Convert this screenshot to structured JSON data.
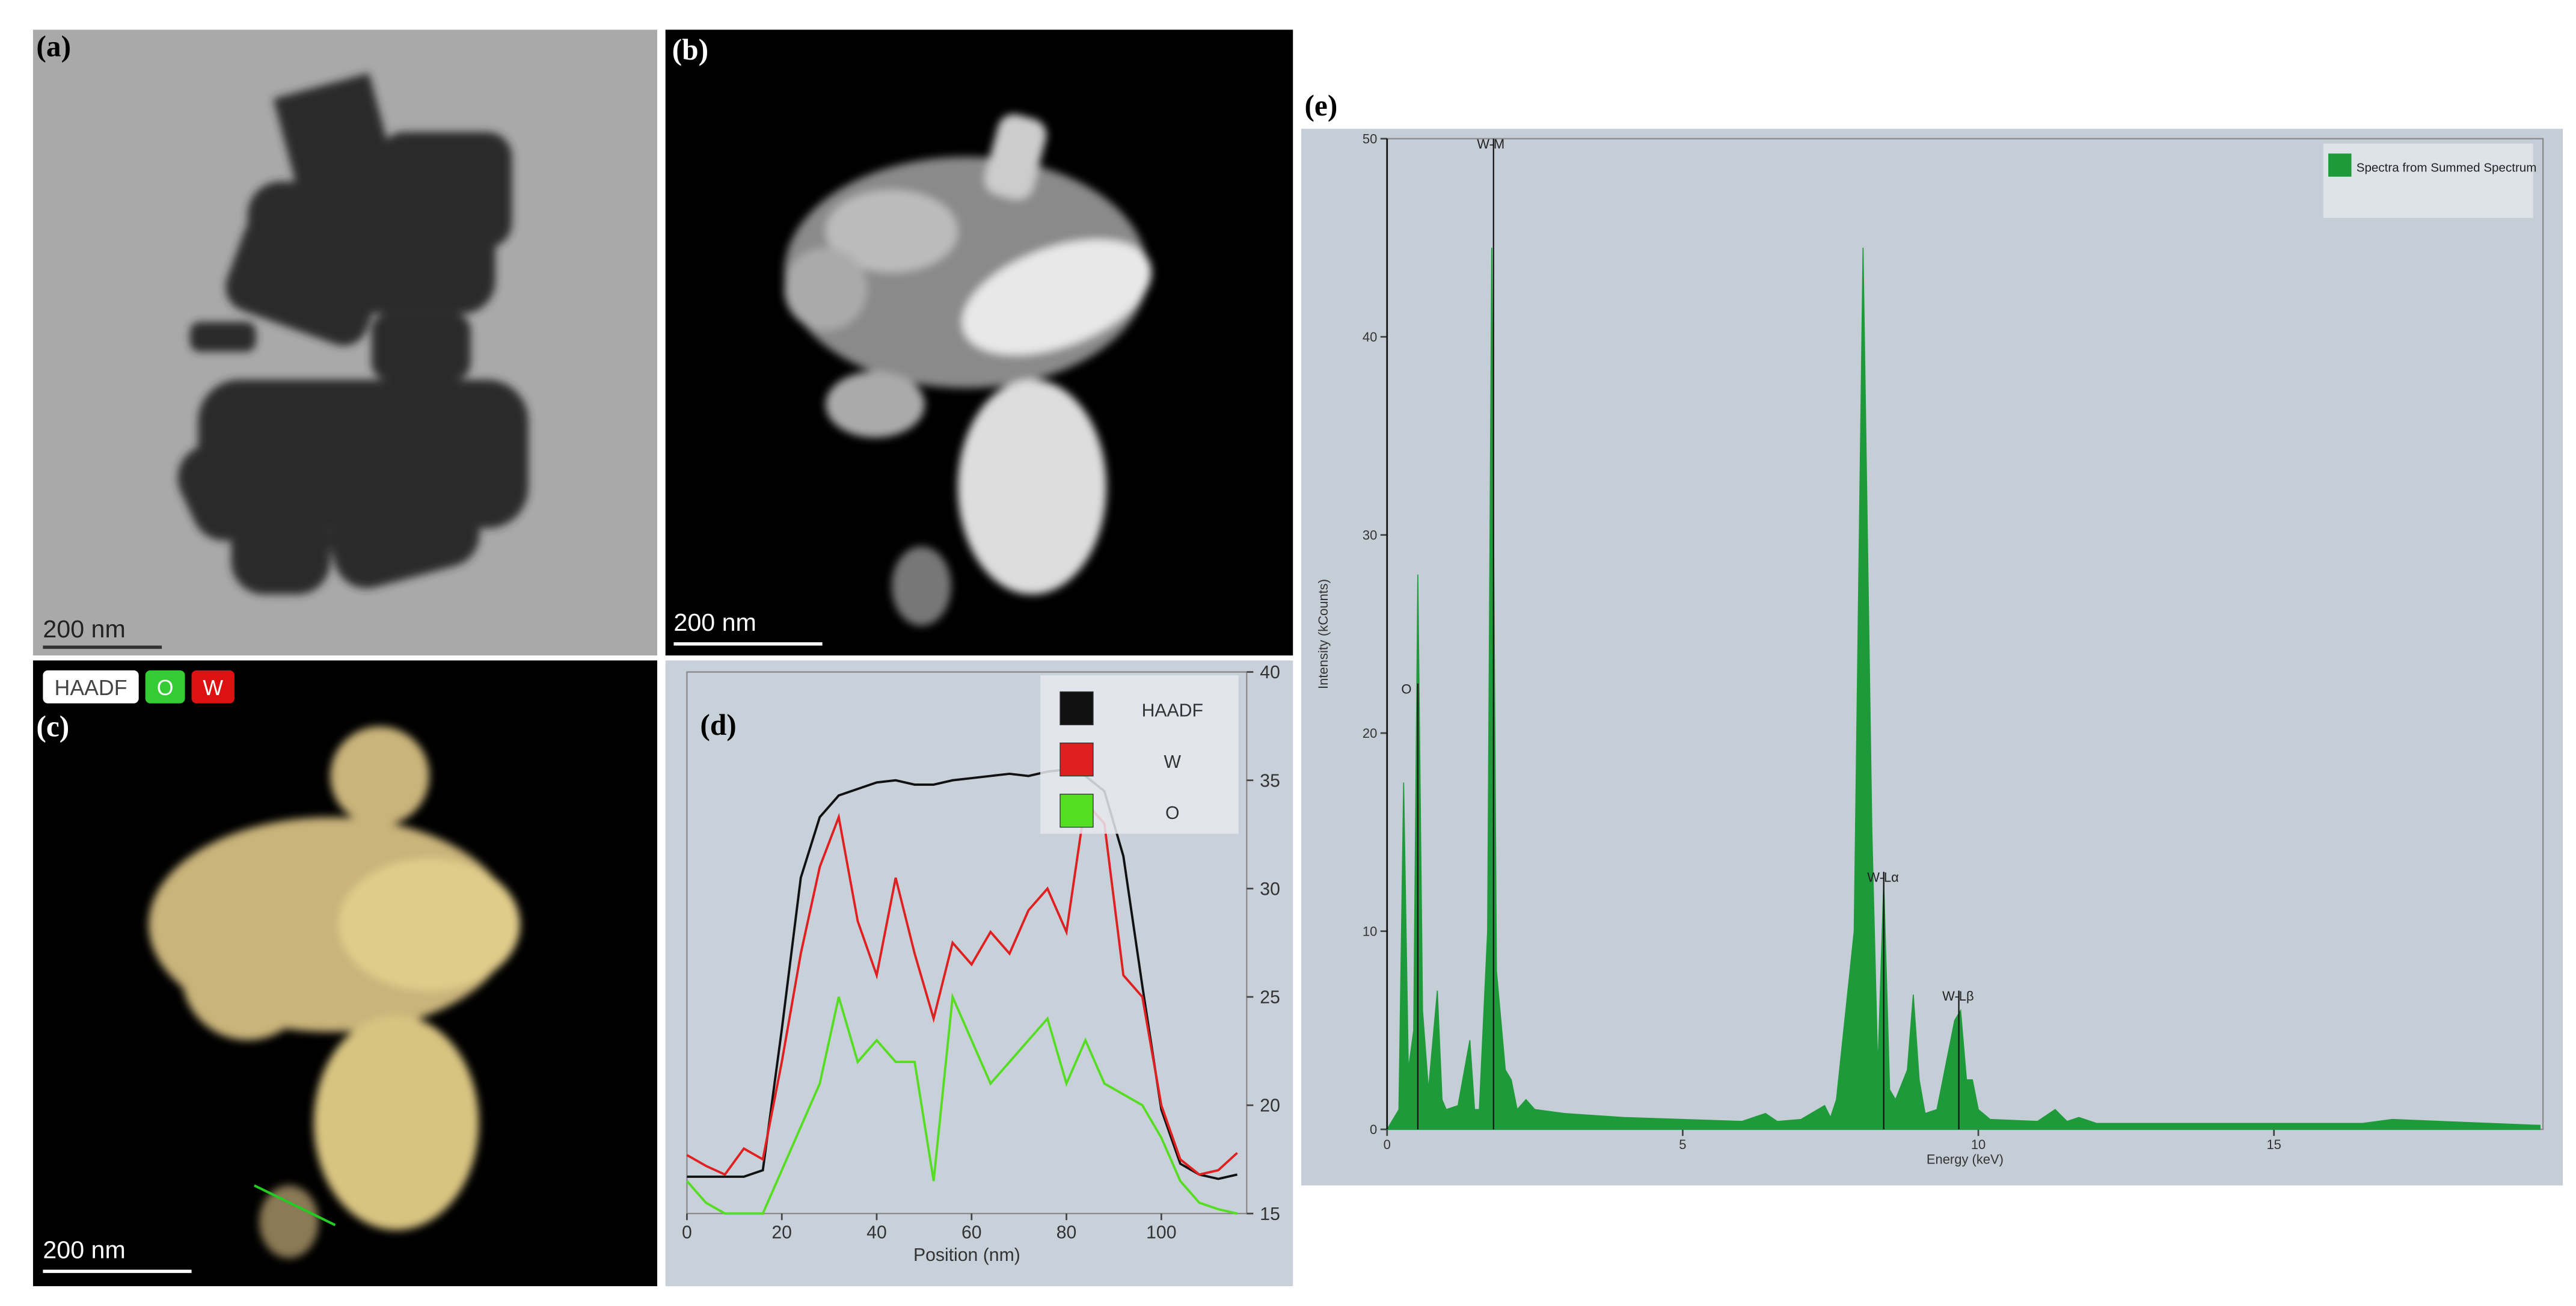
{
  "images": [
    {
      "label": "(a)",
      "scale_bar": "200 nm"
    },
    {
      "label": "(b)",
      "scale_bar": "200 nm"
    },
    {
      "label": "(c)",
      "scale_bar": "200 nm",
      "channels": [
        "HAADF",
        "O",
        "W"
      ]
    }
  ],
  "chart_data": [
    {
      "type": "line",
      "panel_label": "(d)",
      "x_label": "Position (nm)",
      "x": [
        0,
        4,
        8,
        12,
        16,
        20,
        24,
        28,
        32,
        36,
        40,
        44,
        48,
        52,
        56,
        60,
        64,
        68,
        72,
        76,
        80,
        84,
        88,
        92,
        96,
        100,
        104,
        108,
        112,
        116
      ],
      "series": [
        {
          "name": "HAADF",
          "color": "#111111",
          "values": [
            16.7,
            16.7,
            16.7,
            16.7,
            17.0,
            23.5,
            30.5,
            33.3,
            34.3,
            34.6,
            34.9,
            35.0,
            34.8,
            34.8,
            35.0,
            35.1,
            35.2,
            35.3,
            35.2,
            35.4,
            35.5,
            35.2,
            34.5,
            31.5,
            25.5,
            19.8,
            17.3,
            16.8,
            16.6,
            16.8
          ]
        },
        {
          "name": "W",
          "color": "#e02020",
          "values": [
            17.7,
            17.2,
            16.8,
            18.0,
            17.5,
            22,
            27,
            31,
            33.3,
            28.5,
            26,
            30.5,
            27,
            24,
            27.5,
            26.5,
            28,
            27,
            29,
            30,
            28,
            34,
            33,
            26,
            25,
            20,
            17.5,
            16.8,
            17,
            17.8
          ]
        },
        {
          "name": "O",
          "color": "#55dd22",
          "values": [
            16.5,
            15.5,
            15,
            15,
            15,
            17,
            19,
            21,
            25,
            22,
            23,
            22,
            22,
            16.5,
            25,
            23,
            21,
            22,
            23,
            24,
            21,
            23,
            21,
            20.5,
            20,
            18.5,
            16.5,
            15.5,
            15.2,
            15
          ]
        }
      ],
      "xlim": [
        0,
        118
      ],
      "xticks": [
        0,
        20,
        40,
        60,
        80,
        100
      ],
      "ylim": [
        15,
        40
      ],
      "yticks": [
        15,
        20,
        25,
        30,
        35,
        40
      ],
      "y_axis_side": "right",
      "legend": "upper right"
    },
    {
      "type": "area",
      "panel_label": "(e)",
      "x_label": "Energy (keV)",
      "y_label": "Intensity (kCounts)",
      "x": [
        0,
        0.2,
        0.28,
        0.36,
        0.45,
        0.52,
        0.6,
        0.7,
        0.85,
        0.93,
        1.0,
        1.2,
        1.4,
        1.48,
        1.56,
        1.7,
        1.77,
        1.85,
        2.0,
        2.1,
        2.2,
        2.35,
        2.5,
        3,
        4,
        5,
        6,
        6.4,
        6.6,
        7,
        7.4,
        7.5,
        7.6,
        7.9,
        8.05,
        8.2,
        8.3,
        8.4,
        8.5,
        8.6,
        8.8,
        8.9,
        9.0,
        9.1,
        9.3,
        9.6,
        9.7,
        9.8,
        9.9,
        10.0,
        10.2,
        11.0,
        11.3,
        11.5,
        11.7,
        12,
        13,
        15,
        16.5,
        17,
        19.5
      ],
      "series": [
        {
          "name": "Spectra from Summed Spectrum",
          "color": "#1f9a3a",
          "values": [
            0,
            1,
            17.5,
            3,
            5,
            28,
            6,
            2,
            7,
            1.5,
            1,
            1.2,
            4.5,
            1,
            1,
            10,
            44.5,
            8,
            3,
            2.5,
            1,
            1.5,
            1,
            0.8,
            0.6,
            0.5,
            0.4,
            0.8,
            0.4,
            0.5,
            1.2,
            0.6,
            1.5,
            10,
            44.5,
            15,
            3,
            12.5,
            2,
            1.5,
            3,
            6.8,
            2.5,
            0.8,
            1,
            5.5,
            6,
            2.5,
            2.5,
            1,
            0.5,
            0.4,
            1,
            0.4,
            0.6,
            0.3,
            0.3,
            0.3,
            0.3,
            0.5,
            0.2
          ]
        }
      ],
      "annotations": [
        {
          "text": "O",
          "x": 0.52,
          "y": 22.5
        },
        {
          "text": "W-M",
          "x": 1.8,
          "y": 50
        },
        {
          "text": "W-Lα",
          "x": 8.4,
          "y": 13
        },
        {
          "text": "W-Lβ",
          "x": 9.67,
          "y": 7
        }
      ],
      "xlim": [
        0,
        19.55
      ],
      "xticks": [
        0,
        5,
        10,
        15
      ],
      "ylim": [
        0,
        50
      ],
      "yticks": [
        0,
        10,
        20,
        30,
        40,
        50
      ],
      "legend": "upper right"
    }
  ]
}
